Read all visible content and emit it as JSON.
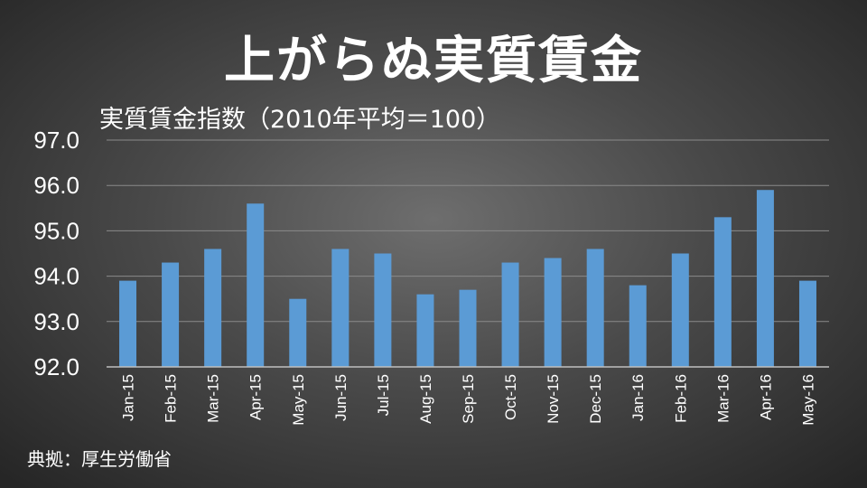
{
  "title": "上がらぬ実質賃金",
  "source": "典拠：厚生労働省",
  "colors": {
    "bar": "#5b9bd5",
    "grid": "#8a8a8a",
    "axis": "#bfbfbf"
  },
  "chart_data": {
    "type": "bar",
    "title": "実質賃金指数（2010年平均＝100）",
    "categories": [
      "Jan-15",
      "Feb-15",
      "Mar-15",
      "Apr-15",
      "May-15",
      "Jun-15",
      "Jul-15",
      "Aug-15",
      "Sep-15",
      "Oct-15",
      "Nov-15",
      "Dec-15",
      "Jan-16",
      "Feb-16",
      "Mar-16",
      "Apr-16",
      "May-16"
    ],
    "values": [
      93.9,
      94.3,
      94.6,
      95.6,
      93.5,
      94.6,
      94.5,
      93.6,
      93.7,
      94.3,
      94.4,
      94.6,
      93.8,
      94.5,
      95.3,
      95.9,
      93.9
    ],
    "ylim": [
      92.0,
      97.0
    ],
    "yticks": [
      "92.0",
      "93.0",
      "94.0",
      "95.0",
      "96.0",
      "97.0"
    ],
    "grid": true,
    "legend": "none"
  }
}
